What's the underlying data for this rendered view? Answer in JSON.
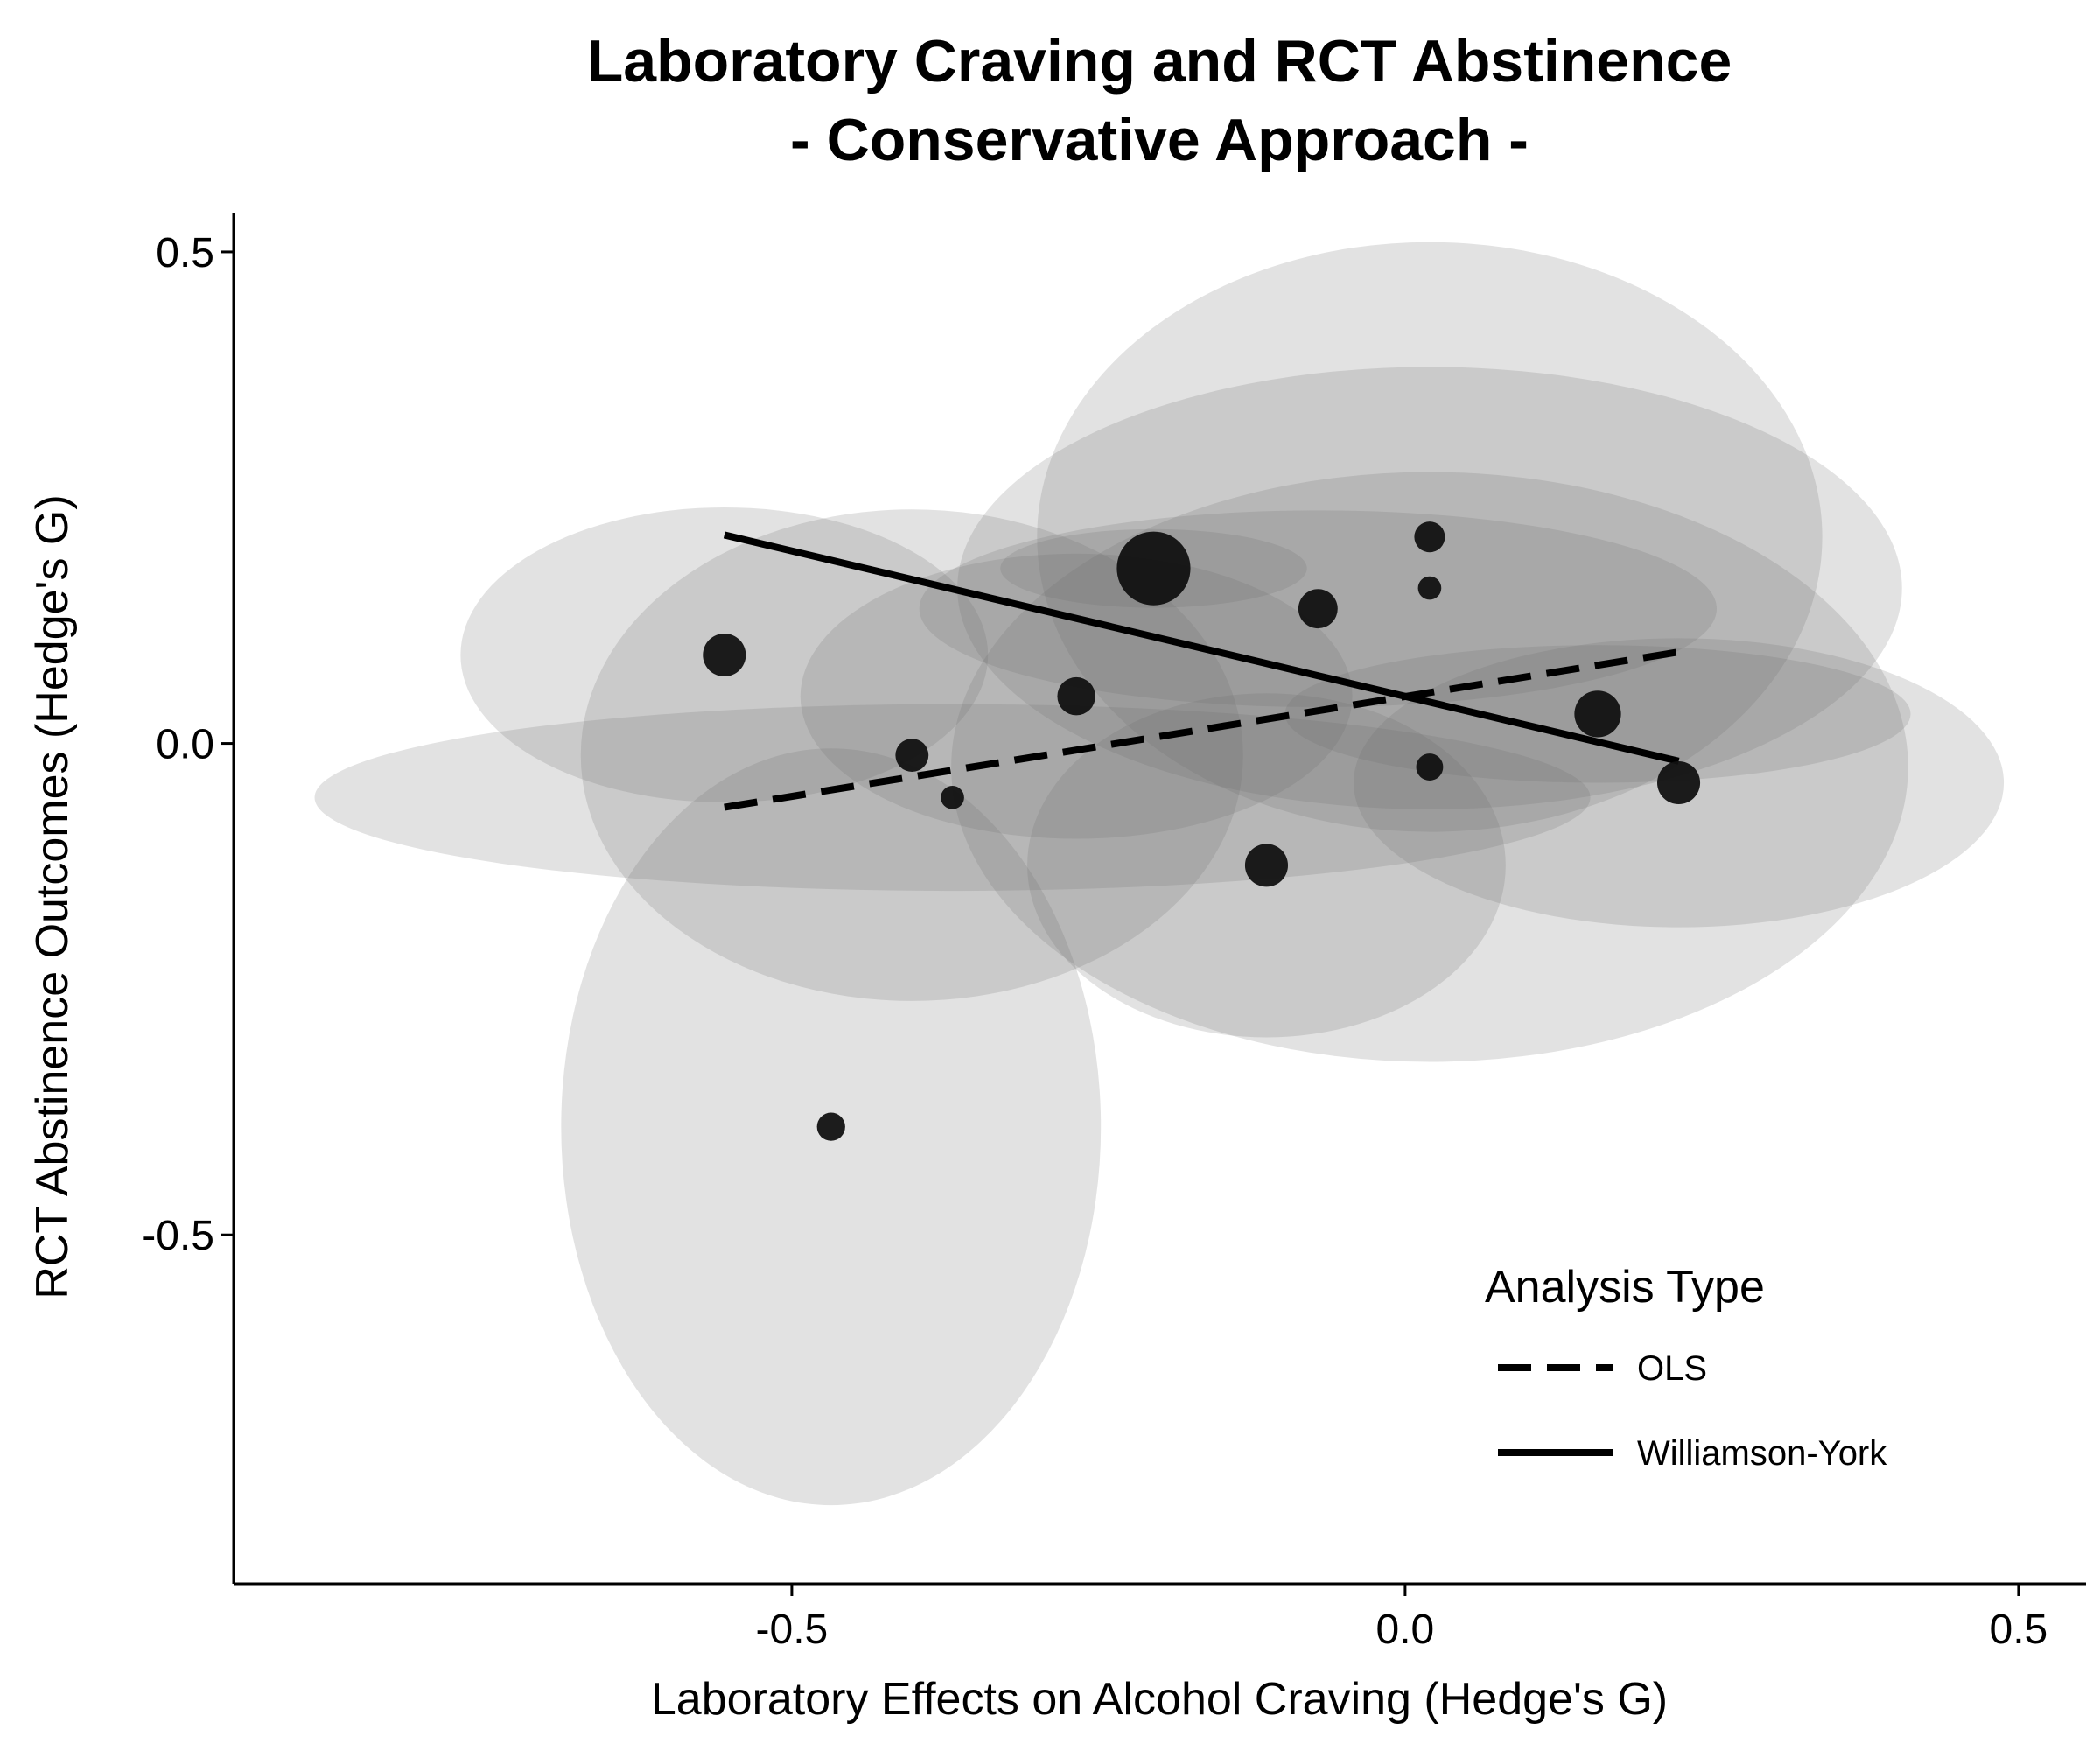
{
  "chart_data": {
    "type": "scatter",
    "title_line1": "Laboratory Craving and RCT Abstinence",
    "title_line2": "- Conservative Approach -",
    "xlabel": "Laboratory Effects on Alcohol Craving (Hedge's G)",
    "ylabel": "RCT Abstinence Outcomes (Hedge's G)",
    "xlim": [
      -0.955,
      0.555
    ],
    "ylim": [
      -0.855,
      0.54
    ],
    "xticks": [
      -0.5,
      0.0,
      0.5
    ],
    "xtick_labels": [
      "-0.5",
      "0.0",
      "0.5"
    ],
    "yticks": [
      -0.5,
      0.0,
      0.5
    ],
    "ytick_labels": [
      "-0.5",
      "0.0",
      "0.5"
    ],
    "grid": false,
    "legend": {
      "title": "Analysis Type",
      "placement": "bottom-right",
      "entries": [
        {
          "label": "OLS",
          "style": "dashed"
        },
        {
          "label": "Williamson-York",
          "style": "solid"
        }
      ]
    },
    "points": [
      {
        "x": -0.555,
        "y": 0.09,
        "size": 0.0175,
        "ex": 0.215,
        "ey": 0.15
      },
      {
        "x": -0.468,
        "y": -0.39,
        "size": 0.0115,
        "ex": 0.22,
        "ey": 0.385
      },
      {
        "x": -0.402,
        "y": -0.012,
        "size": 0.0135,
        "ex": 0.27,
        "ey": 0.25
      },
      {
        "x": -0.369,
        "y": -0.055,
        "size": 0.0095,
        "ex": 0.52,
        "ey": 0.095
      },
      {
        "x": -0.268,
        "y": 0.048,
        "size": 0.0155,
        "ex": 0.225,
        "ey": 0.145
      },
      {
        "x": -0.205,
        "y": 0.178,
        "size": 0.03,
        "ex": 0.125,
        "ey": 0.04
      },
      {
        "x": -0.113,
        "y": -0.124,
        "size": 0.0175,
        "ex": 0.195,
        "ey": 0.175
      },
      {
        "x": -0.071,
        "y": 0.137,
        "size": 0.016,
        "ex": 0.325,
        "ey": 0.1
      },
      {
        "x": 0.02,
        "y": 0.21,
        "size": 0.0125,
        "ex": 0.32,
        "ey": 0.3
      },
      {
        "x": 0.02,
        "y": 0.158,
        "size": 0.0095,
        "ex": 0.385,
        "ey": 0.225
      },
      {
        "x": 0.02,
        "y": -0.024,
        "size": 0.011,
        "ex": 0.39,
        "ey": 0.3
      },
      {
        "x": 0.157,
        "y": 0.03,
        "size": 0.019,
        "ex": 0.255,
        "ey": 0.07
      },
      {
        "x": 0.223,
        "y": -0.04,
        "size": 0.0175,
        "ex": 0.265,
        "ey": 0.147
      }
    ],
    "series": [
      {
        "name": "OLS",
        "style": "dashed",
        "x": [
          -0.555,
          0.223
        ],
        "y": [
          -0.065,
          0.093
        ]
      },
      {
        "name": "Williamson-York",
        "style": "solid",
        "x": [
          -0.555,
          0.223
        ],
        "y": [
          0.212,
          -0.018
        ]
      }
    ],
    "colors": {
      "ellipse_fill": "#6f6f6f",
      "point_fill": "#111111",
      "line": "#000000"
    }
  }
}
